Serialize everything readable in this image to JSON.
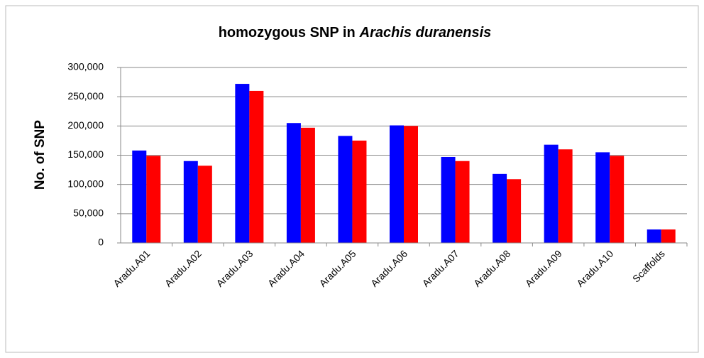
{
  "chart_data": {
    "type": "bar",
    "title": [
      "homozygous SNP in",
      "Arachis duranensis"
    ],
    "ylabel": "No. of SNP",
    "categories": [
      "Aradu.A01",
      "Aradu.A02",
      "Aradu.A03",
      "Aradu.A04",
      "Aradu.A05",
      "Aradu.A06",
      "Aradu.A07",
      "Aradu.A08",
      "Aradu.A09",
      "Aradu.A10",
      "Scaffolds"
    ],
    "series": [
      {
        "color": "#0000ff",
        "values": [
          158000,
          140000,
          272000,
          205000,
          183000,
          201000,
          147000,
          118000,
          168000,
          155000,
          23000
        ]
      },
      {
        "color": "#ff0000",
        "values": [
          149000,
          132000,
          260000,
          197000,
          175000,
          200000,
          140000,
          109000,
          160000,
          149000,
          23000
        ]
      }
    ],
    "ylim": [
      0,
      300000
    ],
    "yticks": [
      0,
      {
        "value": 50000,
        "label": "50,000"
      },
      {
        "value": 100000,
        "label": "100,000"
      },
      {
        "value": 150000,
        "label": "150,000"
      },
      {
        "value": 200000,
        "label": "200,000"
      },
      {
        "value": 250000,
        "label": "250,000"
      },
      {
        "value": 300000,
        "label": "300,000"
      }
    ],
    "grid": true
  }
}
